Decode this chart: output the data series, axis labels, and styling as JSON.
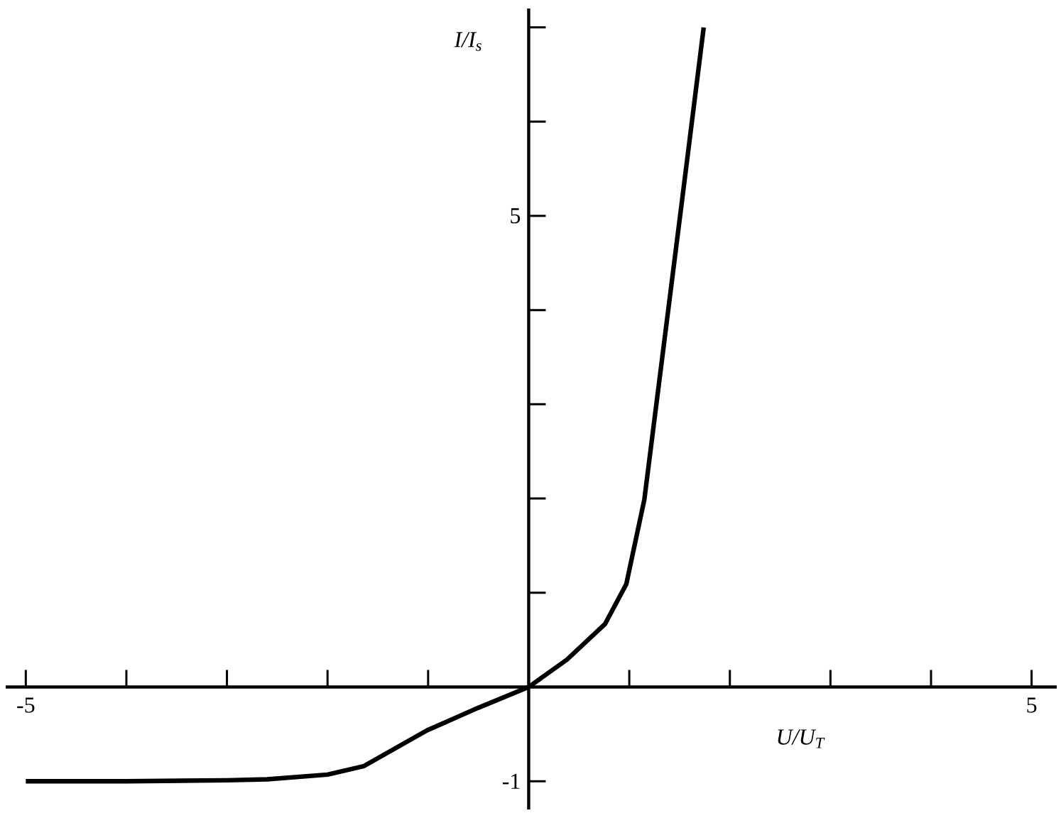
{
  "chart_data": {
    "type": "line",
    "xlabel": "U/U$_{T}$",
    "ylabel": "I/I$_{s}$",
    "x": [
      -5,
      -4,
      -3,
      -2.6,
      -2,
      -1.64,
      -1.01,
      -0.5,
      0,
      0.38,
      0.76,
      0.97,
      1.15,
      1.53,
      1.74
    ],
    "values": [
      -1,
      -1,
      -0.99,
      -0.98,
      -0.93,
      -0.84,
      -0.46,
      -0.22,
      0,
      0.29,
      0.67,
      1.09,
      1.99,
      5.21,
      7.0
    ],
    "color": "#000000",
    "marker": "none",
    "line_style": "solid",
    "grid": false,
    "xlim": [
      -5.2,
      5.25
    ],
    "ylim": [
      -1.3,
      7.2
    ],
    "xticks": [
      -5,
      {
        "value": -4,
        "label": null
      },
      {
        "value": -3,
        "label": null
      },
      {
        "value": -2,
        "label": null
      },
      {
        "value": -1,
        "label": null
      },
      {
        "value": 1,
        "label": null
      },
      {
        "value": 2,
        "label": null
      },
      {
        "value": 3,
        "label": null
      },
      {
        "value": 4,
        "label": null
      },
      5
    ],
    "yticks": [
      -1,
      {
        "value": 1,
        "label": null
      },
      {
        "value": 2,
        "label": null
      },
      {
        "value": 3,
        "label": null
      },
      {
        "value": 4,
        "label": null
      },
      5,
      {
        "value": 6,
        "label": null
      },
      {
        "value": 7,
        "label": null
      }
    ]
  }
}
